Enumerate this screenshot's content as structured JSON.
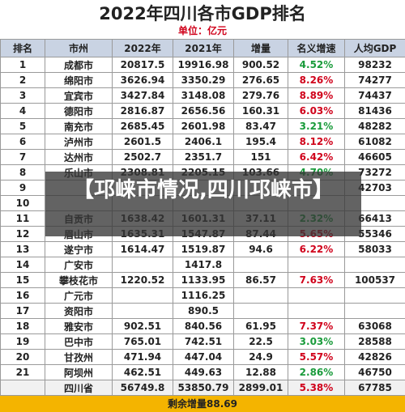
{
  "title": "2022年四川各市GDP排名",
  "subtitle": "单位：亿元",
  "table": {
    "headers": [
      "排名",
      "市州",
      "2022年",
      "2021年",
      "增量",
      "名义增速",
      "人均GDP"
    ],
    "rows": [
      [
        "1",
        "成都市",
        "20817.5",
        "19916.98",
        "900.52",
        "4.52%",
        "98232"
      ],
      [
        "2",
        "绵阳市",
        "3626.94",
        "3350.29",
        "276.65",
        "8.26%",
        "74277"
      ],
      [
        "3",
        "宜宾市",
        "3427.84",
        "3148.08",
        "279.76",
        "8.89%",
        "74437"
      ],
      [
        "4",
        "德阳市",
        "2816.87",
        "2656.56",
        "160.31",
        "6.03%",
        "81436"
      ],
      [
        "5",
        "南充市",
        "2685.45",
        "2601.98",
        "83.47",
        "3.21%",
        "48282"
      ],
      [
        "6",
        "泸州市",
        "2601.5",
        "2406.1",
        "195.4",
        "8.12%",
        "61082"
      ],
      [
        "7",
        "达州市",
        "2502.7",
        "2351.7",
        "151",
        "6.42%",
        "46605"
      ],
      [
        "8",
        "乐山市",
        "2308.81",
        "2205.15",
        "103.66",
        "4.70%",
        "73272"
      ],
      [
        "9",
        null,
        null,
        null,
        null,
        null,
        "42703"
      ],
      [
        "10",
        null,
        null,
        null,
        null,
        null,
        null
      ],
      [
        "11",
        "自贡市",
        "1638.42",
        "1601.31",
        "37.11",
        "2.32%",
        "66413"
      ],
      [
        "12",
        "眉山市",
        "1635.31",
        "1547.87",
        "87.44",
        "5.65%",
        "55346"
      ],
      [
        "13",
        "遂宁市",
        "1614.47",
        "1519.87",
        "94.6",
        "6.22%",
        "58033"
      ],
      [
        "14",
        "广安市",
        null,
        "1417.8",
        null,
        null,
        null
      ],
      [
        "15",
        "攀枝花市",
        "1220.52",
        "1133.95",
        "86.57",
        "7.63%",
        "100537"
      ],
      [
        "16",
        "广元市",
        null,
        "1116.25",
        null,
        null,
        null
      ],
      [
        "17",
        "资阳市",
        null,
        "890.5",
        null,
        null,
        null
      ],
      [
        "18",
        "雅安市",
        "902.51",
        "840.56",
        "61.95",
        "7.37%",
        "63068"
      ],
      [
        "19",
        "巴中市",
        "765.01",
        "742.51",
        "22.5",
        "3.03%",
        "28588"
      ],
      [
        "20",
        "甘孜州",
        "471.94",
        "447.04",
        "24.9",
        "5.57%",
        "42826"
      ],
      [
        "21",
        "阿坝州",
        "462.51",
        "449.63",
        "12.88",
        "2.86%",
        "46750"
      ],
      [
        null,
        "四川省",
        "56749.8",
        "53850.79",
        "2899.01",
        "5.38%",
        "67785"
      ]
    ]
  },
  "footer": "剩余增量88.69",
  "overlay": "【邛崃市情况,四川邛崃市】"
}
